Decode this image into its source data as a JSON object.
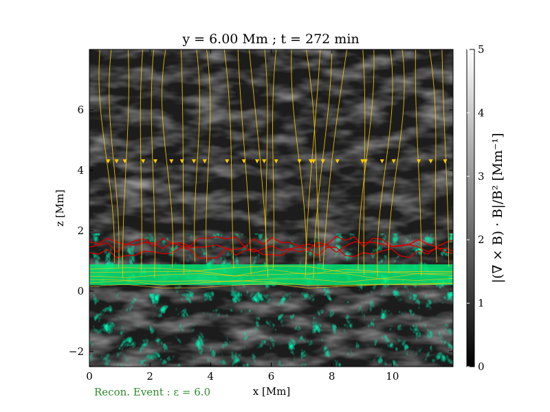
{
  "chart_data": {
    "type": "heatmap",
    "title": "y = 6.00 Mm ; t = 272 min",
    "xlabel": "x [Mm]",
    "ylabel": "z [Mm]",
    "xlim": [
      0,
      12
    ],
    "ylim": [
      -2.5,
      8
    ],
    "xticks": [
      "0",
      "2",
      "4",
      "6",
      "8",
      "10"
    ],
    "yticks": [
      "−2",
      "0",
      "2",
      "4",
      "6"
    ],
    "colorbar": {
      "label": "|(∇ × B) · B|/B² [Mm⁻¹]",
      "range": [
        0,
        5
      ],
      "ticks": [
        "0",
        "1",
        "2",
        "3",
        "4",
        "5"
      ],
      "colormap": "grayscale"
    },
    "annotation": "Recon. Event : ε = 6.0",
    "overlays": [
      {
        "type": "streamlines",
        "color": "#ffcc00",
        "description": "magnetic field lines"
      },
      {
        "type": "contour",
        "color": "#00e676"
      },
      {
        "type": "contour",
        "color": "#d50000"
      }
    ],
    "colors": {
      "streamline": "#ffcc00",
      "contour_green": "#00e676",
      "contour_red": "#d50000",
      "annotation": "#2e8b2e"
    }
  }
}
